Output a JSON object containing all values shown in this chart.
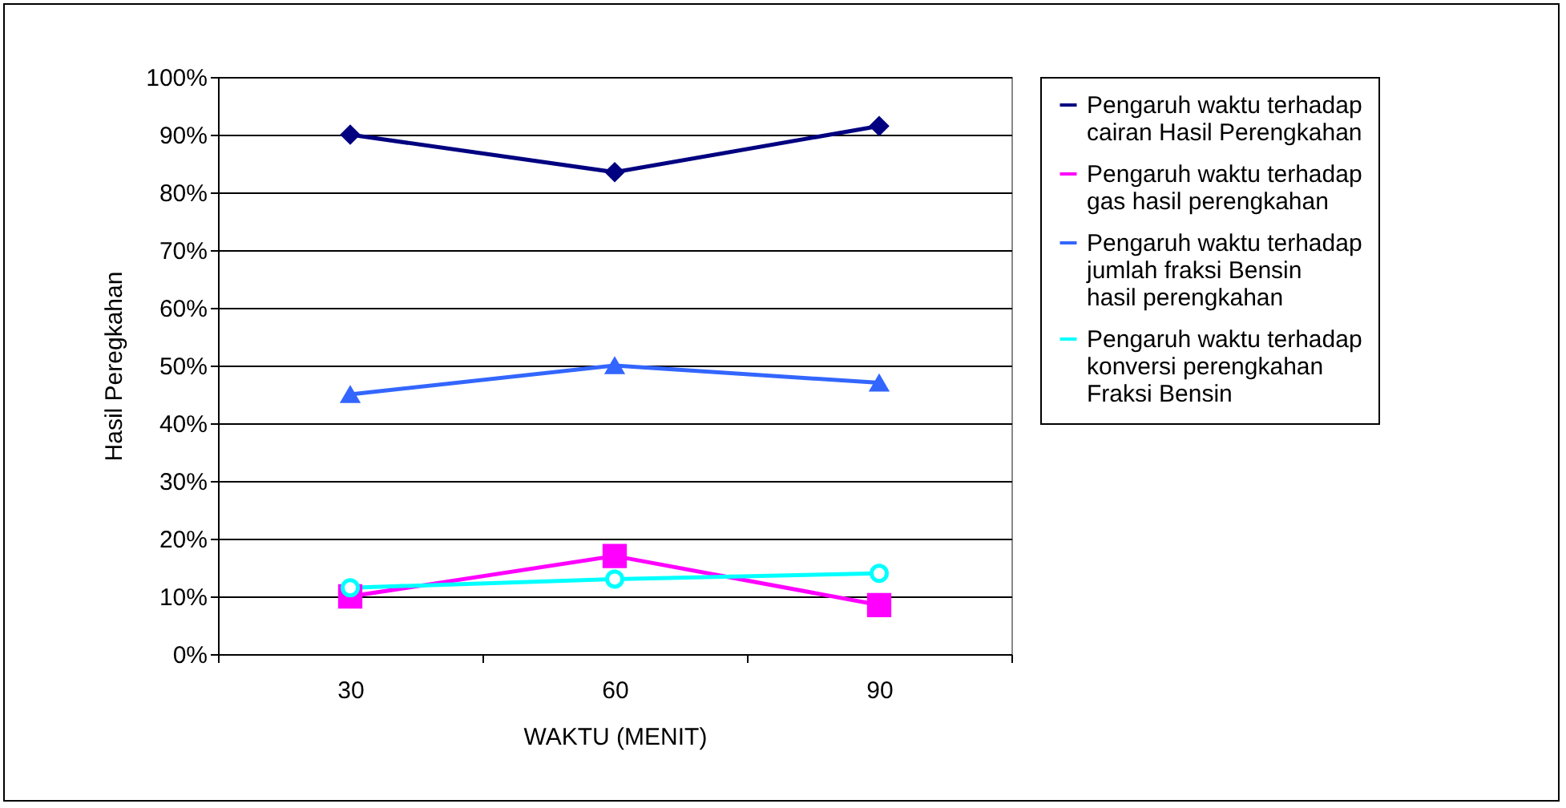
{
  "chart_data": {
    "type": "line",
    "xlabel": "WAKTU (MENIT)",
    "ylabel": "Hasil Peregkahan",
    "categories": [
      "30",
      "60",
      "90"
    ],
    "series": [
      {
        "name": "Pengaruh waktu terhadap cairan  Hasil Perengkahan",
        "color": "#000080",
        "marker": "diamond",
        "values": [
          90,
          83.5,
          91.5
        ]
      },
      {
        "name": "Pengaruh waktu terhadap gas hasil perengkahan",
        "color": "#ff00ff",
        "marker": "square",
        "values": [
          10,
          17,
          8.5
        ]
      },
      {
        "name": "Pengaruh waktu terhadap jumlah fraksi Bensin hasil perengkahan",
        "color": "#3366ff",
        "marker": "triangle",
        "values": [
          45,
          50,
          47
        ]
      },
      {
        "name": "Pengaruh waktu terhadap konversi perengkahan  Fraksi Bensin",
        "color": "#00ffff",
        "marker": "circle",
        "values": [
          11.5,
          13,
          14
        ]
      }
    ],
    "ylim": [
      0,
      100
    ],
    "yticks": [
      {
        "value": 0,
        "label": "0%"
      },
      {
        "value": 10,
        "label": "10%"
      },
      {
        "value": 20,
        "label": "20%"
      },
      {
        "value": 30,
        "label": "30%"
      },
      {
        "value": 40,
        "label": "40%"
      },
      {
        "value": 50,
        "label": "50%"
      },
      {
        "value": 60,
        "label": "60%"
      },
      {
        "value": 70,
        "label": "70%"
      },
      {
        "value": 80,
        "label": "80%"
      },
      {
        "value": 90,
        "label": "90%"
      },
      {
        "value": 100,
        "label": "100%"
      }
    ],
    "grid": "y",
    "legend": "right"
  }
}
